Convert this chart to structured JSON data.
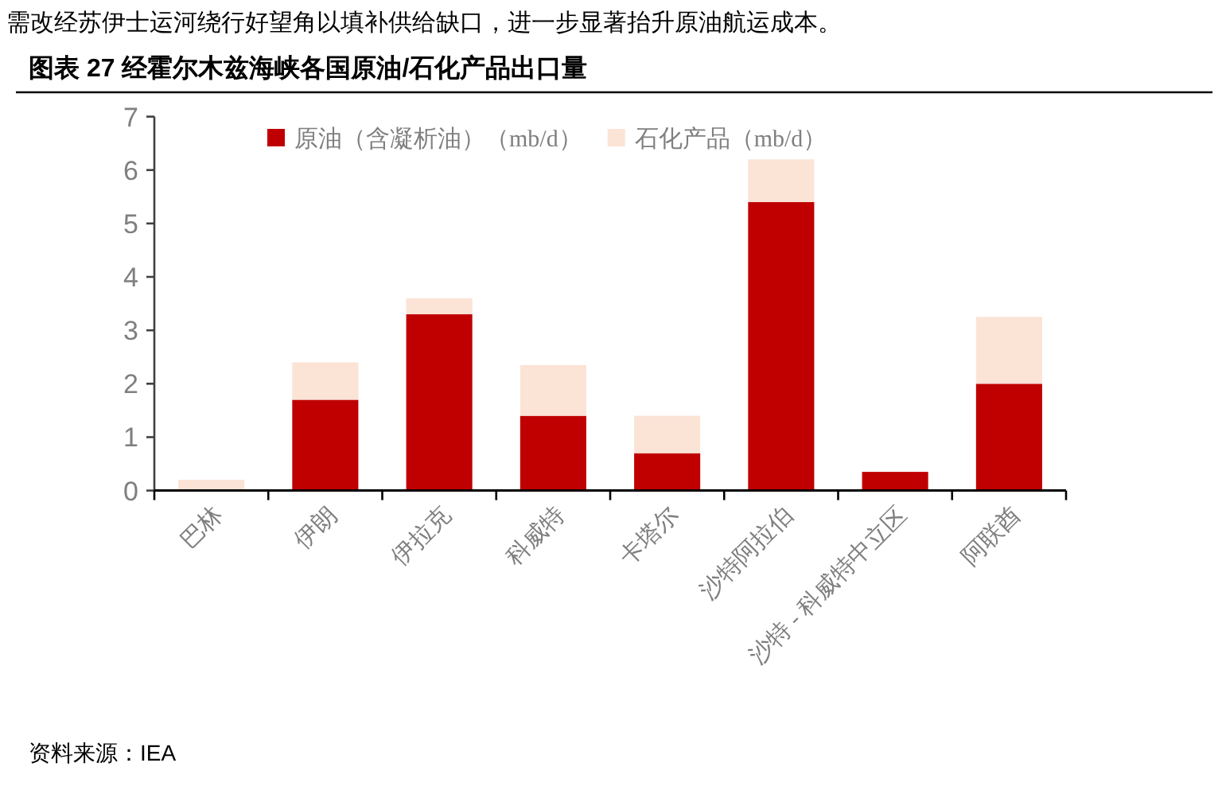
{
  "chart_data": {
    "type": "bar",
    "stacked": true,
    "title": "图表 27 经霍尔木兹海峡各国原油/石化产品出口量",
    "categories": [
      "巴林",
      "伊朗",
      "伊拉克",
      "科威特",
      "卡塔尔",
      "沙特阿拉伯",
      "沙特 - 科威特中立区",
      "阿联酋"
    ],
    "series": [
      {
        "name": "原油（含凝析油）（mb/d）",
        "color": "#c00000",
        "values": [
          0,
          1.7,
          3.3,
          1.4,
          0.7,
          5.4,
          0.35,
          2.0
        ]
      },
      {
        "name": "石化产品（mb/d）",
        "color": "#fbe3d6",
        "values": [
          0.2,
          0.7,
          0.3,
          0.95,
          0.7,
          0.8,
          0,
          1.25
        ]
      }
    ],
    "ylim": [
      0,
      7
    ],
    "yticks": [
      0,
      1,
      2,
      3,
      4,
      5,
      6,
      7
    ],
    "grid": false,
    "legend": "top",
    "annotations": [
      "需改经苏伊士运河绕行好望角以填补供给缺口，进一步显著抬升原油航运成本。",
      "资料来源：IEA"
    ]
  }
}
